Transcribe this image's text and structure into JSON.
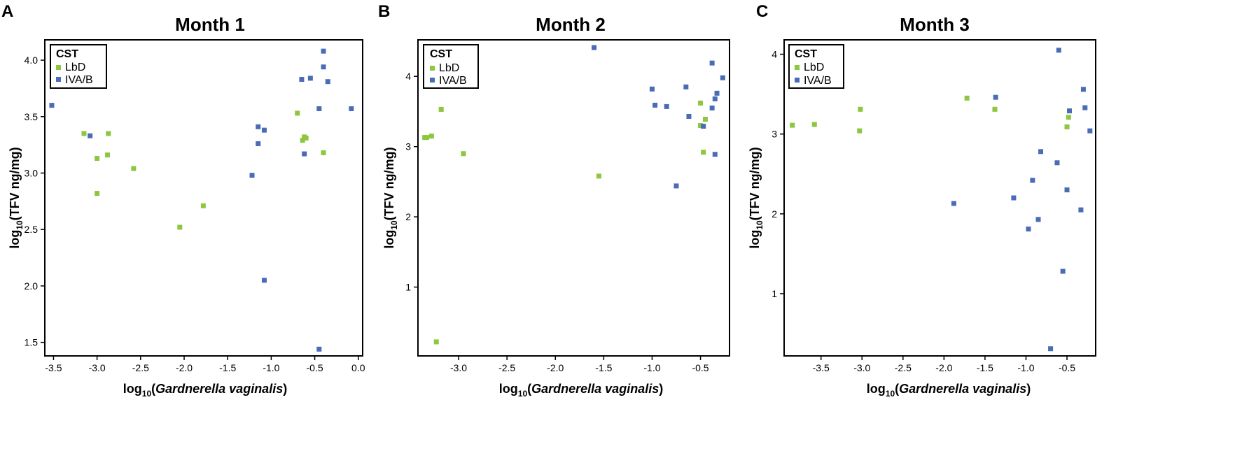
{
  "colors": {
    "LbD": "#8dc63f",
    "IVA/B": "#4a6cb6"
  },
  "chart_data": [
    {
      "panel": "A",
      "type": "scatter",
      "title": "Month 1",
      "xlabel": "log10(Gardnerella vaginalis)",
      "ylabel": "log10(TFV ng/mg)",
      "xlim": [
        -3.6,
        0.05
      ],
      "ylim": [
        1.38,
        4.18
      ],
      "xticks": [
        -3.5,
        -3.0,
        -2.5,
        -2.0,
        -1.5,
        -1.0,
        -0.5,
        0.0
      ],
      "xtick_labels": [
        "-3.5",
        "-3.0",
        "-2.5",
        "-2.0",
        "-1.5",
        "-1.0",
        "-0.5",
        "0.0"
      ],
      "yticks": [
        1.5,
        2.0,
        2.5,
        3.0,
        3.5,
        4.0
      ],
      "ytick_labels": [
        "1.5",
        "2.0",
        "2.5",
        "3.0",
        "3.5",
        "4.0"
      ],
      "legend": {
        "title": "CST",
        "entries": [
          "LbD",
          "IVA/B"
        ],
        "position": "top-left"
      },
      "series": [
        {
          "name": "LbD",
          "x": [
            -3.15,
            -3.0,
            -2.87,
            -3.0,
            -2.88,
            -2.58,
            -2.05,
            -1.78,
            -0.7,
            -0.62,
            -0.64,
            -0.6,
            -0.4
          ],
          "y": [
            3.35,
            3.13,
            3.35,
            2.82,
            3.16,
            3.04,
            2.52,
            2.71,
            3.53,
            3.32,
            3.29,
            3.31,
            3.18
          ]
        },
        {
          "name": "IVA/B",
          "x": [
            -3.52,
            -3.08,
            -1.22,
            -1.15,
            -1.15,
            -1.08,
            -1.08,
            -0.65,
            -0.55,
            -0.62,
            -0.45,
            -0.4,
            -0.4,
            -0.35,
            -0.45,
            -0.08
          ],
          "y": [
            3.6,
            3.33,
            2.98,
            3.41,
            3.26,
            3.38,
            2.05,
            3.83,
            3.84,
            3.17,
            3.57,
            4.08,
            3.94,
            3.81,
            1.44,
            3.57
          ]
        }
      ]
    },
    {
      "panel": "B",
      "type": "scatter",
      "title": "Month 2",
      "xlabel": "log10(Gardnerella vaginalis)",
      "ylabel": "log10(TFV ng/mg)",
      "xlim": [
        -3.42,
        -0.2
      ],
      "ylim": [
        0.02,
        4.52
      ],
      "xticks": [
        -3.0,
        -2.5,
        -2.0,
        -1.5,
        -1.0,
        -0.5
      ],
      "xtick_labels": [
        "-3.0",
        "-2.5",
        "-2.0",
        "-1.5",
        "-1.0",
        "-0.5"
      ],
      "yticks": [
        1,
        2,
        3,
        4
      ],
      "ytick_labels": [
        "1",
        "2",
        "3",
        "4"
      ],
      "legend": {
        "title": "CST",
        "entries": [
          "LbD",
          "IVA/B"
        ],
        "position": "top-left"
      },
      "series": [
        {
          "name": "LbD",
          "x": [
            -3.35,
            -3.33,
            -3.28,
            -3.18,
            -2.95,
            -3.23,
            -1.55,
            -0.5,
            -0.5,
            -0.45,
            -0.47
          ],
          "y": [
            3.13,
            3.13,
            3.15,
            3.53,
            2.9,
            0.22,
            2.58,
            3.3,
            3.62,
            3.39,
            2.92
          ]
        },
        {
          "name": "IVA/B",
          "x": [
            -1.6,
            -1.0,
            -0.97,
            -0.85,
            -0.75,
            -0.65,
            -0.62,
            -0.47,
            -0.38,
            -0.38,
            -0.35,
            -0.35,
            -0.33,
            -0.27
          ],
          "y": [
            4.41,
            3.82,
            3.59,
            3.57,
            2.44,
            3.85,
            3.43,
            3.29,
            4.19,
            3.55,
            3.68,
            2.89,
            3.76,
            3.98
          ]
        }
      ]
    },
    {
      "panel": "C",
      "type": "scatter",
      "title": "Month 3",
      "xlabel": "log10(Gardnerella vaginalis)",
      "ylabel": "log10(TFV ng/mg)",
      "xlim": [
        -3.95,
        -0.15
      ],
      "ylim": [
        0.22,
        4.18
      ],
      "xticks": [
        -3.5,
        -3.0,
        -2.5,
        -2.0,
        -1.5,
        -1.0,
        -0.5
      ],
      "xtick_labels": [
        "-3.5",
        "-3.0",
        "-2.5",
        "-2.0",
        "-1.5",
        "-1.0",
        "-0.5"
      ],
      "yticks": [
        1,
        2,
        3,
        4
      ],
      "ytick_labels": [
        "1",
        "2",
        "3",
        "4"
      ],
      "legend": {
        "title": "CST",
        "entries": [
          "LbD",
          "IVA/B"
        ],
        "position": "top-left"
      },
      "series": [
        {
          "name": "LbD",
          "x": [
            -3.85,
            -3.58,
            -3.02,
            -3.03,
            -1.72,
            -1.38,
            -0.5,
            -0.48
          ],
          "y": [
            3.11,
            3.12,
            3.31,
            3.04,
            3.45,
            3.31,
            3.09,
            3.21
          ]
        },
        {
          "name": "IVA/B",
          "x": [
            -1.37,
            -1.88,
            -1.15,
            -0.97,
            -0.92,
            -0.85,
            -0.82,
            -0.7,
            -0.62,
            -0.6,
            -0.55,
            -0.5,
            -0.47,
            -0.33,
            -0.3,
            -0.28,
            -0.22
          ],
          "y": [
            3.46,
            2.13,
            2.2,
            1.81,
            2.42,
            1.93,
            2.78,
            0.31,
            2.64,
            4.05,
            1.28,
            2.3,
            3.29,
            2.05,
            3.56,
            3.33,
            3.04
          ]
        }
      ]
    }
  ]
}
